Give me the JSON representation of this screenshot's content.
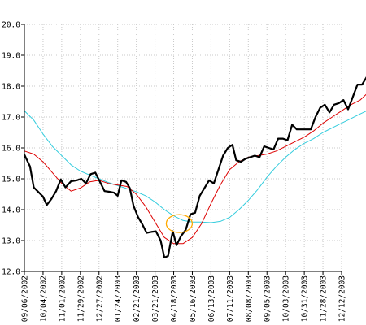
{
  "chart_data": {
    "type": "line",
    "title": "",
    "xlabel": "",
    "ylabel": "",
    "ylim": [
      12.0,
      20.0
    ],
    "y_ticks": [
      "12.0",
      "13.0",
      "14.0",
      "15.0",
      "16.0",
      "17.0",
      "18.0",
      "19.0",
      "20.0"
    ],
    "x_ticks": [
      "09/06/2002",
      "10/04/2002",
      "11/01/2002",
      "11/29/2002",
      "12/27/2002",
      "01/24/2003",
      "02/21/2003",
      "03/21/2003",
      "04/18/2003",
      "05/16/2003",
      "06/13/2003",
      "07/11/2003",
      "08/08/2003",
      "09/05/2003",
      "10/03/2003",
      "10/31/2003",
      "11/28/2003",
      "12/12/2003"
    ],
    "grid": true,
    "colors": {
      "price": "#000000",
      "short_ma": "#dd0000",
      "long_ma": "#33ccdd",
      "highlight": "#ffaa00"
    },
    "annotation": {
      "shape": "ellipse",
      "x": 8.3,
      "y": 13.55
    },
    "series": [
      {
        "key": "price",
        "values": [
          [
            0,
            15.78
          ],
          [
            0.3,
            15.4
          ],
          [
            0.5,
            14.72
          ],
          [
            0.7,
            14.6
          ],
          [
            1.0,
            14.42
          ],
          [
            1.2,
            14.15
          ],
          [
            1.45,
            14.35
          ],
          [
            1.7,
            14.6
          ],
          [
            1.95,
            14.98
          ],
          [
            2.2,
            14.72
          ],
          [
            2.5,
            14.92
          ],
          [
            2.8,
            14.95
          ],
          [
            3.05,
            15.0
          ],
          [
            3.3,
            14.85
          ],
          [
            3.55,
            15.15
          ],
          [
            3.8,
            15.2
          ],
          [
            4.05,
            14.9
          ],
          [
            4.3,
            14.6
          ],
          [
            4.55,
            14.58
          ],
          [
            4.8,
            14.55
          ],
          [
            5.0,
            14.45
          ],
          [
            5.2,
            14.95
          ],
          [
            5.45,
            14.9
          ],
          [
            5.65,
            14.7
          ],
          [
            5.85,
            14.12
          ],
          [
            6.1,
            13.75
          ],
          [
            6.3,
            13.55
          ],
          [
            6.55,
            13.25
          ],
          [
            6.8,
            13.28
          ],
          [
            7.05,
            13.3
          ],
          [
            7.3,
            13.0
          ],
          [
            7.5,
            12.45
          ],
          [
            7.7,
            12.5
          ],
          [
            7.95,
            13.3
          ],
          [
            8.15,
            12.85
          ],
          [
            8.4,
            13.15
          ],
          [
            8.65,
            13.35
          ],
          [
            8.9,
            13.85
          ],
          [
            9.15,
            13.9
          ],
          [
            9.4,
            14.45
          ],
          [
            9.65,
            14.7
          ],
          [
            9.9,
            14.95
          ],
          [
            10.15,
            14.85
          ],
          [
            10.4,
            15.3
          ],
          [
            10.65,
            15.75
          ],
          [
            10.9,
            16.0
          ],
          [
            11.15,
            16.1
          ],
          [
            11.35,
            15.6
          ],
          [
            11.6,
            15.55
          ],
          [
            11.85,
            15.65
          ],
          [
            12.1,
            15.7
          ],
          [
            12.35,
            15.75
          ],
          [
            12.6,
            15.7
          ],
          [
            12.85,
            16.05
          ],
          [
            13.1,
            16.0
          ],
          [
            13.35,
            15.95
          ],
          [
            13.6,
            16.3
          ],
          [
            13.85,
            16.3
          ],
          [
            14.1,
            16.25
          ],
          [
            14.35,
            16.75
          ],
          [
            14.6,
            16.6
          ],
          [
            14.85,
            16.6
          ],
          [
            15.1,
            16.6
          ],
          [
            15.35,
            16.6
          ],
          [
            15.6,
            17.0
          ],
          [
            15.85,
            17.3
          ],
          [
            16.1,
            17.4
          ],
          [
            16.35,
            17.15
          ],
          [
            16.6,
            17.4
          ],
          [
            16.85,
            17.45
          ],
          [
            17.1,
            17.55
          ],
          [
            17.35,
            17.25
          ],
          [
            17.6,
            17.65
          ],
          [
            17.85,
            18.05
          ],
          [
            18.1,
            18.05
          ],
          [
            18.35,
            18.3
          ]
        ]
      },
      {
        "key": "short_ma",
        "values": [
          [
            0,
            15.9
          ],
          [
            0.5,
            15.8
          ],
          [
            1.0,
            15.55
          ],
          [
            1.5,
            15.2
          ],
          [
            2.0,
            14.85
          ],
          [
            2.5,
            14.6
          ],
          [
            3.0,
            14.7
          ],
          [
            3.5,
            14.9
          ],
          [
            4.0,
            14.95
          ],
          [
            4.5,
            14.85
          ],
          [
            5.0,
            14.8
          ],
          [
            5.5,
            14.75
          ],
          [
            6.0,
            14.5
          ],
          [
            6.5,
            14.1
          ],
          [
            7.0,
            13.6
          ],
          [
            7.5,
            13.1
          ],
          [
            8.0,
            12.9
          ],
          [
            8.5,
            12.9
          ],
          [
            9.0,
            13.1
          ],
          [
            9.5,
            13.55
          ],
          [
            10.0,
            14.2
          ],
          [
            10.5,
            14.8
          ],
          [
            11.0,
            15.3
          ],
          [
            11.5,
            15.55
          ],
          [
            12.0,
            15.7
          ],
          [
            12.5,
            15.75
          ],
          [
            13.0,
            15.8
          ],
          [
            13.5,
            15.9
          ],
          [
            14.0,
            16.05
          ],
          [
            14.5,
            16.2
          ],
          [
            15.0,
            16.35
          ],
          [
            15.5,
            16.55
          ],
          [
            16.0,
            16.8
          ],
          [
            16.5,
            17.0
          ],
          [
            17.0,
            17.2
          ],
          [
            17.5,
            17.4
          ],
          [
            18.0,
            17.55
          ],
          [
            18.35,
            17.75
          ]
        ]
      },
      {
        "key": "long_ma",
        "values": [
          [
            0,
            17.2
          ],
          [
            0.5,
            16.9
          ],
          [
            1.0,
            16.45
          ],
          [
            1.5,
            16.05
          ],
          [
            2.0,
            15.75
          ],
          [
            2.5,
            15.45
          ],
          [
            3.0,
            15.25
          ],
          [
            3.5,
            15.12
          ],
          [
            4.0,
            15.0
          ],
          [
            4.5,
            14.88
          ],
          [
            5.0,
            14.78
          ],
          [
            5.5,
            14.68
          ],
          [
            6.0,
            14.58
          ],
          [
            6.5,
            14.45
          ],
          [
            7.0,
            14.25
          ],
          [
            7.5,
            14.0
          ],
          [
            8.0,
            13.8
          ],
          [
            8.5,
            13.65
          ],
          [
            9.0,
            13.6
          ],
          [
            9.5,
            13.6
          ],
          [
            10.0,
            13.58
          ],
          [
            10.5,
            13.62
          ],
          [
            11.0,
            13.75
          ],
          [
            11.5,
            14.0
          ],
          [
            12.0,
            14.3
          ],
          [
            12.5,
            14.65
          ],
          [
            13.0,
            15.05
          ],
          [
            13.5,
            15.4
          ],
          [
            14.0,
            15.7
          ],
          [
            14.5,
            15.95
          ],
          [
            15.0,
            16.15
          ],
          [
            15.5,
            16.3
          ],
          [
            16.0,
            16.5
          ],
          [
            16.5,
            16.65
          ],
          [
            17.0,
            16.8
          ],
          [
            17.5,
            16.95
          ],
          [
            18.0,
            17.1
          ],
          [
            18.35,
            17.2
          ]
        ]
      }
    ]
  }
}
